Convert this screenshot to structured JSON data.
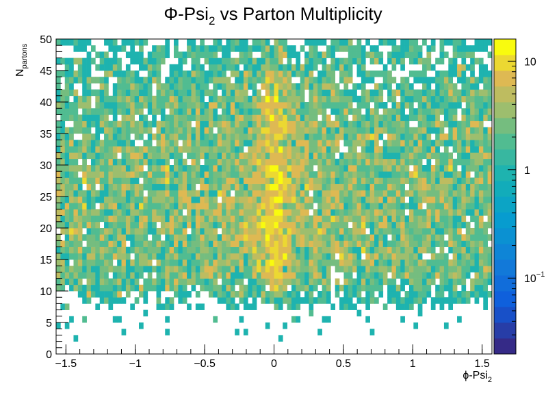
{
  "chart_data": {
    "type": "heatmap",
    "title_main": "Φ-Psi",
    "title_sub": "2",
    "title_rest": " vs Parton Multiplicity",
    "xlabel_main": "ϕ-Psi",
    "xlabel_sub": "2",
    "ylabel_main": "N",
    "ylabel_sub": "partons",
    "xlim": [
      -1.5708,
      1.5708
    ],
    "ylim": [
      0,
      50
    ],
    "x_ticks": [
      {
        "value": -1.5,
        "label": "−1.5"
      },
      {
        "value": -1,
        "label": "−1"
      },
      {
        "value": -0.5,
        "label": "−0.5"
      },
      {
        "value": 0,
        "label": "0"
      },
      {
        "value": 0.5,
        "label": "0.5"
      },
      {
        "value": 1,
        "label": "1"
      },
      {
        "value": 1.5,
        "label": "1.5"
      }
    ],
    "y_ticks": [
      {
        "value": 0,
        "label": "0"
      },
      {
        "value": 5,
        "label": "5"
      },
      {
        "value": 10,
        "label": "10"
      },
      {
        "value": 15,
        "label": "15"
      },
      {
        "value": 20,
        "label": "20"
      },
      {
        "value": 25,
        "label": "25"
      },
      {
        "value": 30,
        "label": "30"
      },
      {
        "value": 35,
        "label": "35"
      },
      {
        "value": 40,
        "label": "40"
      },
      {
        "value": 45,
        "label": "45"
      },
      {
        "value": 50,
        "label": "50"
      }
    ],
    "x_bins": 100,
    "y_bins": 50,
    "z_scale": "log",
    "z_range": [
      0.02,
      16
    ],
    "colorbar_ticks": [
      {
        "value": 10,
        "label": "10",
        "sup": ""
      },
      {
        "value": 1,
        "label": "1",
        "sup": ""
      },
      {
        "value": 0.1,
        "label": "10",
        "sup": "−1"
      }
    ],
    "palette": "kBird",
    "grid": false,
    "distribution": "counts rise from ~1 near N=10 to ~3-5 at N=13-35, falling back to ~1 near N=45-50; enhanced near ϕ-Psi2 = 0 (peak ~10-14)"
  }
}
